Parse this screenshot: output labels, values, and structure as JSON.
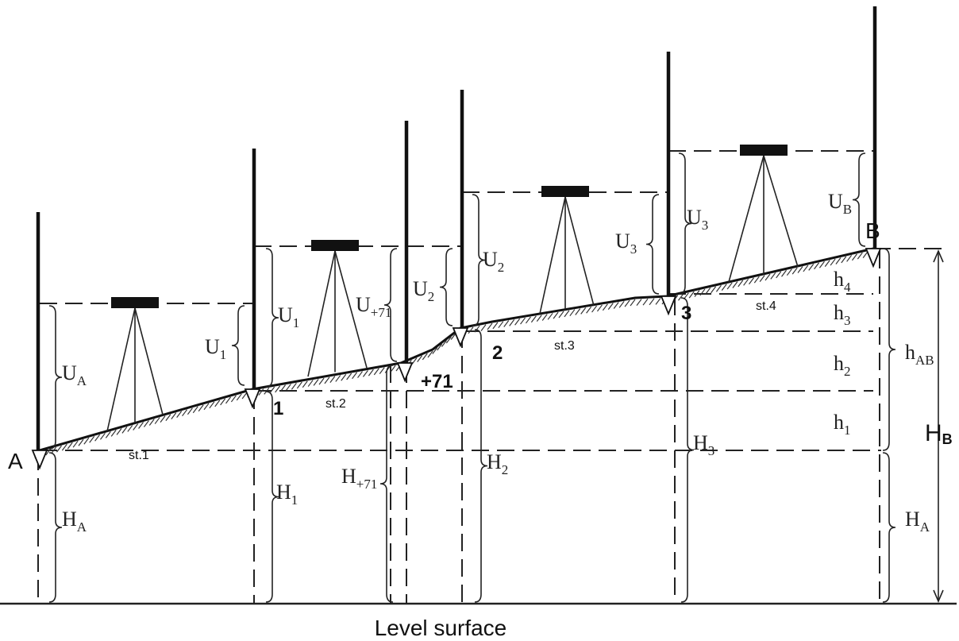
{
  "points": [
    "A",
    "1",
    "+71",
    "2",
    "3",
    "B"
  ],
  "stations": [
    "st.1",
    "st.2",
    "st.3",
    "st.4"
  ],
  "readings": [
    {
      "symbol": "U",
      "sub": "A"
    },
    {
      "symbol": "U",
      "sub": "1"
    },
    {
      "symbol": "U",
      "sub": "1"
    },
    {
      "symbol": "U",
      "sub": "+71"
    },
    {
      "symbol": "U",
      "sub": "2"
    },
    {
      "symbol": "U",
      "sub": "2"
    },
    {
      "symbol": "U",
      "sub": "3"
    },
    {
      "symbol": "U",
      "sub": "3"
    },
    {
      "symbol": "U",
      "sub": "B"
    }
  ],
  "elevations": [
    {
      "symbol": "H",
      "sub": "A"
    },
    {
      "symbol": "H",
      "sub": "1"
    },
    {
      "symbol": "H",
      "sub": "+71"
    },
    {
      "symbol": "H",
      "sub": "2"
    },
    {
      "symbol": "H",
      "sub": "3"
    },
    {
      "symbol": "H",
      "sub": "A"
    }
  ],
  "heights": [
    {
      "symbol": "h",
      "sub": "4"
    },
    {
      "symbol": "h",
      "sub": "3"
    },
    {
      "symbol": "h",
      "sub": "2"
    },
    {
      "symbol": "h",
      "sub": "1"
    },
    {
      "symbol": "h",
      "sub": "AB"
    },
    {
      "symbol": "H",
      "sub": "B"
    }
  ],
  "footer": "Level surface"
}
